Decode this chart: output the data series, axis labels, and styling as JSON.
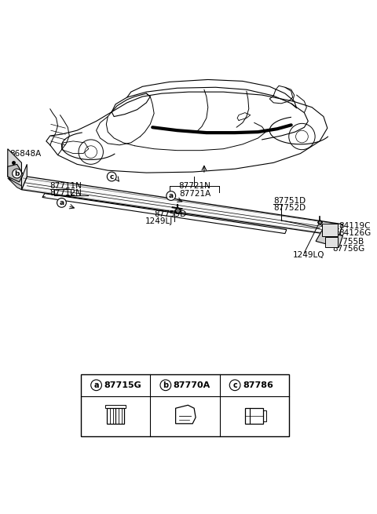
{
  "bg_color": "#ffffff",
  "line_color": "#000000",
  "text_color": "#000000",
  "parts": {
    "car_label_1": "87721N",
    "car_label_2": "87721A",
    "label_87711N": "87711N",
    "label_87712N": "87712N",
    "label_87751D": "87751D",
    "label_87752D": "87752D",
    "label_84119C": "84119C",
    "label_84126G": "84126G",
    "label_87759D": "87759D",
    "label_1249LJ": "1249LJ",
    "label_87755B": "87755B",
    "label_87756G": "87756G",
    "label_1249LQ": "1249LQ",
    "label_86848A": "86848A"
  },
  "legend": [
    {
      "symbol": "a",
      "code": "87715G"
    },
    {
      "symbol": "b",
      "code": "87770A"
    },
    {
      "symbol": "c",
      "code": "87786"
    }
  ]
}
